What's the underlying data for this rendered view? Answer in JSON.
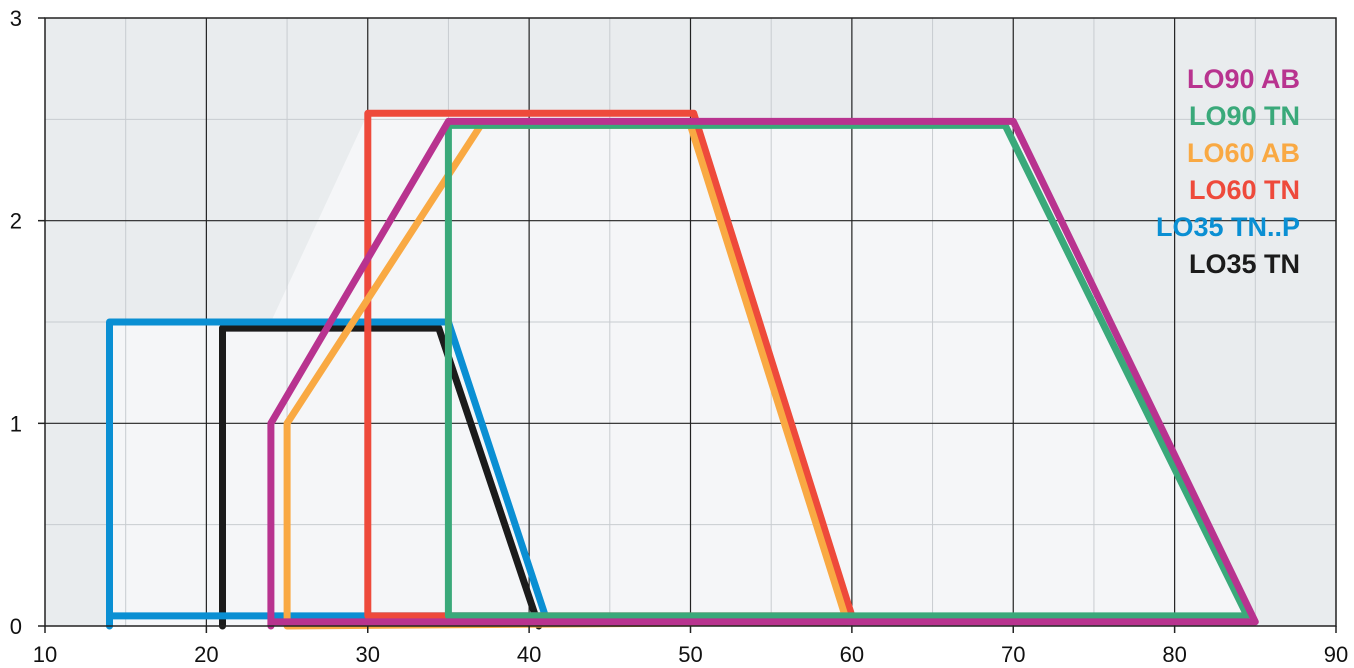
{
  "chart_data": {
    "type": "line",
    "title": "",
    "xlabel": "",
    "ylabel": "",
    "xlim": [
      10,
      90
    ],
    "ylim": [
      0,
      3
    ],
    "xticks": [
      "10",
      "20",
      "30",
      "40",
      "50",
      "60",
      "70",
      "80",
      "90"
    ],
    "yticks": [
      "0",
      "1",
      "2",
      "3"
    ],
    "xtick_values": [
      10,
      20,
      30,
      40,
      50,
      60,
      70,
      80,
      90
    ],
    "ytick_values": [
      0,
      1,
      2,
      3
    ],
    "grid": true,
    "legend_position": "top-right",
    "background_color": "#e9ecee",
    "envelope_fill": "#f5f6f8",
    "series": [
      {
        "name": "LO35 TN",
        "color": "#1b1b1b",
        "points": [
          [
            21,
            0
          ],
          [
            21,
            1.47
          ],
          [
            34.4,
            1.47
          ],
          [
            40.6,
            0
          ]
        ]
      },
      {
        "name": "LO35 TN..P",
        "color": "#0a8fd3",
        "points": [
          [
            14,
            0
          ],
          [
            14,
            1.5
          ],
          [
            35,
            1.5
          ],
          [
            41,
            0.05
          ],
          [
            14,
            0.05
          ]
        ]
      },
      {
        "name": "LO60 TN",
        "color": "#ee4a3b",
        "points": [
          [
            30,
            0.05
          ],
          [
            30,
            2.53
          ],
          [
            50.2,
            2.53
          ],
          [
            60,
            0.05
          ],
          [
            30,
            0.05
          ]
        ]
      },
      {
        "name": "LO60 AB",
        "color": "#f9a943",
        "points": [
          [
            25,
            0
          ],
          [
            25,
            1
          ],
          [
            37,
            2.47
          ],
          [
            50,
            2.47
          ],
          [
            59.7,
            0.02
          ],
          [
            25,
            0
          ]
        ]
      },
      {
        "name": "LO90 TN",
        "color": "#3aa97a",
        "points": [
          [
            35,
            0.05
          ],
          [
            35,
            2.47
          ],
          [
            69.5,
            2.47
          ],
          [
            84.5,
            0.05
          ],
          [
            35,
            0.05
          ]
        ]
      },
      {
        "name": "LO90 AB",
        "color": "#b8338f",
        "points": [
          [
            24,
            0
          ],
          [
            24,
            1
          ],
          [
            35,
            2.49
          ],
          [
            70,
            2.49
          ],
          [
            85,
            0.02
          ],
          [
            24,
            0.02
          ],
          [
            24,
            0
          ]
        ]
      }
    ],
    "legend_order": [
      "LO90 AB",
      "LO90 TN",
      "LO60 AB",
      "LO60 TN",
      "LO35 TN..P",
      "LO35 TN"
    ]
  }
}
